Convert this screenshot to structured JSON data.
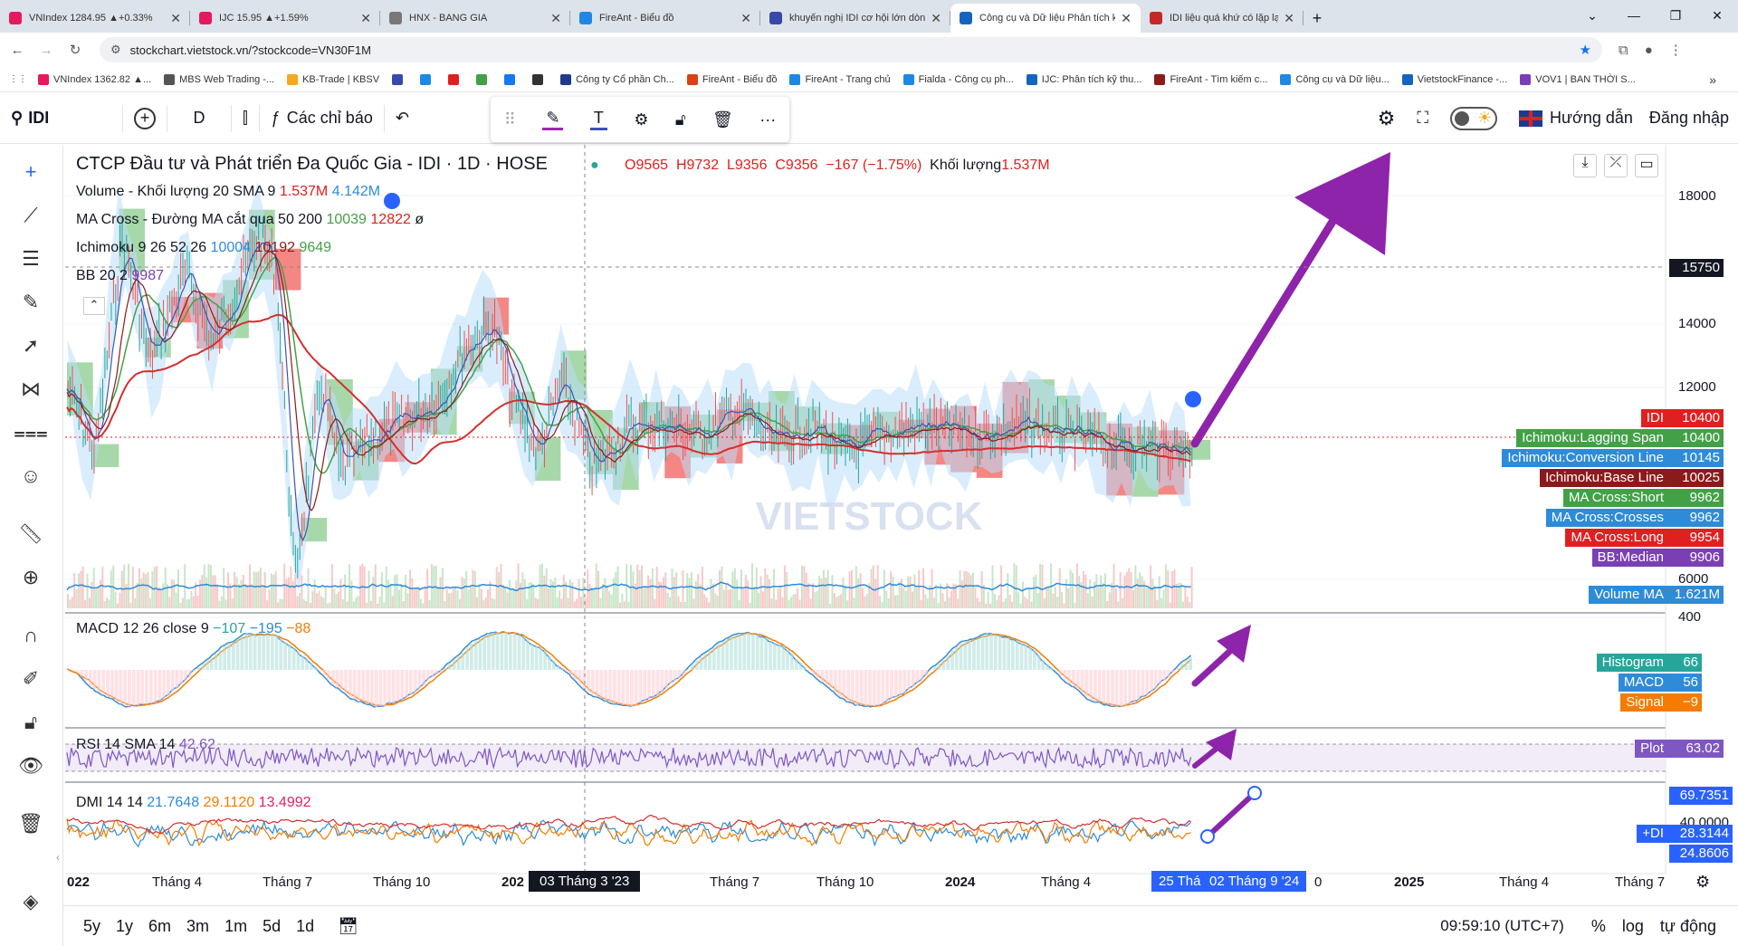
{
  "browser": {
    "tabs": [
      {
        "label": "VNIndex 1284.95 ▲+0.33%",
        "color": "#e6195c"
      },
      {
        "label": "IJC 15.95 ▲+1.59%",
        "color": "#e6195c"
      },
      {
        "label": "HNX - BANG GIA",
        "color": "#555555"
      },
      {
        "label": "FireAnt - Biểu đồ",
        "color": "#1e88e5"
      },
      {
        "label": "khuyến nghị IDI cơ hội lớn dòn",
        "color": "#3949ab"
      },
      {
        "label": "Công cụ và Dữ liệu Phân tích kỹ",
        "color": "#1565c0"
      },
      {
        "label": "IDI liệu quá khứ có lặp lại? - Kh",
        "color": "#c62828"
      }
    ],
    "url": "stockchart.vietstock.vn/?stockcode=VN30F1M",
    "bookmarks": [
      "VNIndex 1362.82 ▲...",
      "MBS Web Trading -...",
      "KB-Trade | KBSV",
      "",
      "",
      "",
      "",
      "",
      "",
      "Công ty Cổ phần Ch...",
      "FireAnt - Biểu đồ",
      "FireAnt - Trang chủ",
      "Fialda - Công cụ ph...",
      "IJC: Phân tích kỹ thu...",
      "FireAnt - Tìm kiếm c...",
      "Công cụ và Dữ liệu...",
      "VietstockFinance -...",
      "VOV1 | BAN THỜI S..."
    ]
  },
  "toolbar": {
    "symbol": "IDI",
    "interval": "D",
    "indicators_label": "Các chỉ báo",
    "guide_label": "Hướng dẫn",
    "login_label": "Đăng nhập"
  },
  "legend": {
    "title": "CTCP Đầu tư và Phát triển Đa Quốc Gia - IDI · 1D · HOSE",
    "open": "O9565",
    "high": "H9732",
    "low": "L9356",
    "close": "C9356",
    "change": "−167 (−1.75%)",
    "volume_label": "Khối lượng",
    "volume_value": "1.537M",
    "volume_ind": "Volume - Khối lượng 20 SMA 9",
    "volume_ind_v1": "1.537M",
    "volume_ind_v2": "4.142M",
    "ma_cross": "MA Cross - Đường MA cắt qua 50 200",
    "ma_v1": "10039",
    "ma_v2": "12822",
    "ma_v3": "ø",
    "ichimoku": "Ichimoku 9 26 52 26",
    "ichi_v1": "10004",
    "ichi_v2": "10192",
    "ichi_v3": "9649",
    "bb": "BB 20 2",
    "bb_v1": "9987",
    "macd": "MACD 12 26 close 9",
    "macd_v1": "−107",
    "macd_v2": "−195",
    "macd_v3": "−88",
    "rsi": "RSI 14 SMA 14",
    "rsi_v1": "42.62",
    "dmi": "DMI 14 14",
    "dmi_v1": "21.7648",
    "dmi_v2": "29.1120",
    "dmi_v3": "13.4992"
  },
  "price_axis": [
    "18000",
    "14000",
    "12000",
    "6000",
    "400"
  ],
  "crosshair_price": "15750",
  "labels": [
    {
      "name": "IDI",
      "value": "10400",
      "color": "#e02020"
    },
    {
      "name": "Ichimoku:Lagging Span",
      "value": "10400",
      "color": "#43a047"
    },
    {
      "name": "Ichimoku:Conversion Line",
      "value": "10145",
      "color": "#2e8bd8"
    },
    {
      "name": "Ichimoku:Base Line",
      "value": "10025",
      "color": "#8b1a1a"
    },
    {
      "name": "MA Cross:Short",
      "value": "9962",
      "color": "#43a047"
    },
    {
      "name": "MA Cross:Crosses",
      "value": "9962",
      "color": "#2e8bd8"
    },
    {
      "name": "MA Cross:Long",
      "value": "9954",
      "color": "#e02020"
    },
    {
      "name": "BB:Median",
      "value": "9906",
      "color": "#7b3fb5"
    },
    {
      "name": "Volume MA",
      "value": "1.621M",
      "color": "#2e8bd8"
    }
  ],
  "macd_labels": [
    {
      "name": "Histogram",
      "value": "66",
      "color": "#26a69a"
    },
    {
      "name": "MACD",
      "value": "56",
      "color": "#2e8bd8"
    },
    {
      "name": "Signal",
      "value": "−9",
      "color": "#f57c00"
    }
  ],
  "rsi_label": {
    "name": "Plot",
    "value": "63.02",
    "color": "#7e57c2"
  },
  "dmi_labels": {
    "v1": "69.7351",
    "v2": "40.0000",
    "plus_name": "+DI",
    "plus_value": "28.3144",
    "v3": "24.8606"
  },
  "time_axis": [
    "022",
    "Tháng 4",
    "Tháng 7",
    "Tháng 10",
    "202",
    "Tháng 7",
    "Tháng 10",
    "2024",
    "Tháng 4",
    "0",
    "2025",
    "Tháng 4",
    "Tháng 7"
  ],
  "time_cursor_1": "03 Tháng 3 '23",
  "time_cursor_2a": "25 Thá",
  "time_cursor_2b": "02 Tháng 9 '24",
  "bottom": {
    "ranges": [
      "5y",
      "1y",
      "6m",
      "3m",
      "1m",
      "5d",
      "1d"
    ],
    "clock": "09:59:10 (UTC+7)",
    "pct": "%",
    "log": "log",
    "auto": "tự động"
  },
  "watermark": "VIETSTOCK"
}
